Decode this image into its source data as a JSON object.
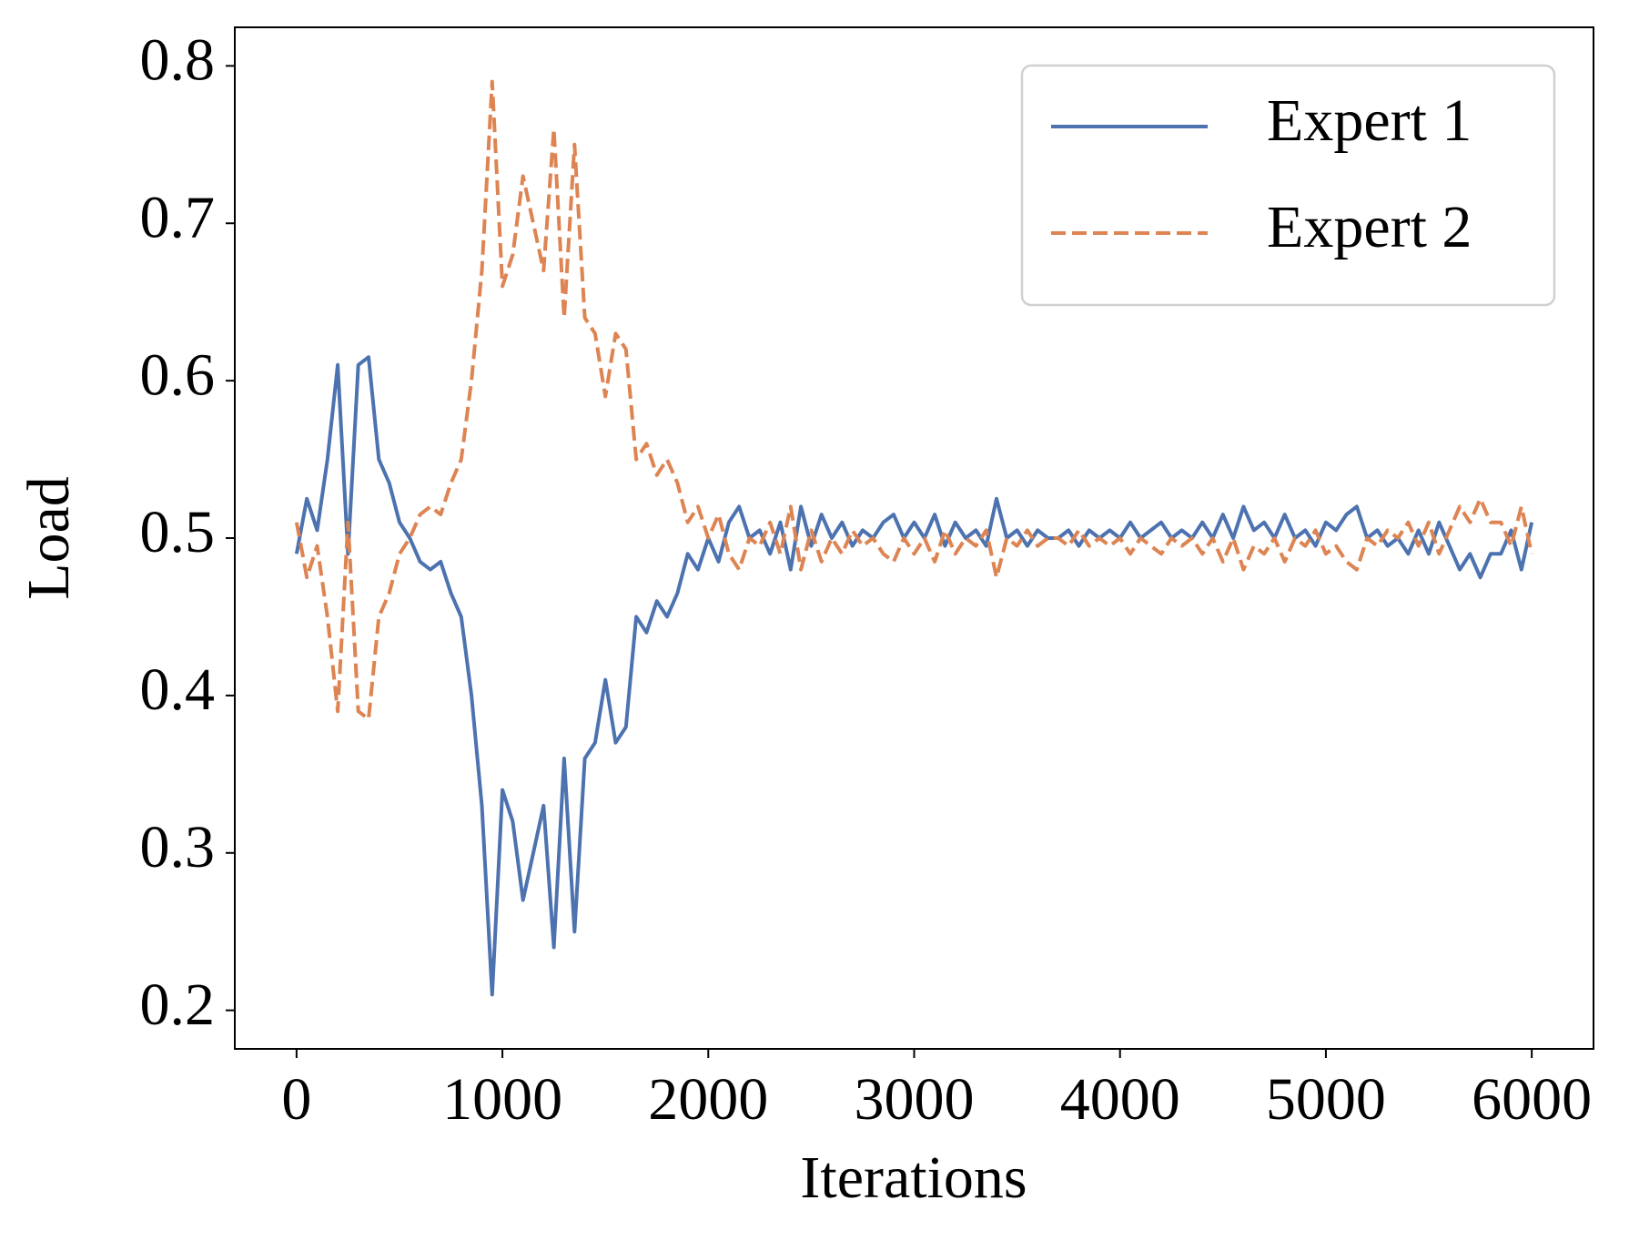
{
  "chart_data": {
    "type": "line",
    "xlabel": "Iterations",
    "ylabel": "Load",
    "x": [
      0,
      50,
      100,
      150,
      200,
      250,
      300,
      350,
      400,
      450,
      500,
      550,
      600,
      650,
      700,
      750,
      800,
      850,
      900,
      950,
      1000,
      1050,
      1100,
      1150,
      1200,
      1250,
      1300,
      1350,
      1400,
      1450,
      1500,
      1550,
      1600,
      1650,
      1700,
      1750,
      1800,
      1850,
      1900,
      1950,
      2000,
      2050,
      2100,
      2150,
      2200,
      2250,
      2300,
      2350,
      2400,
      2450,
      2500,
      2550,
      2600,
      2650,
      2700,
      2750,
      2800,
      2850,
      2900,
      2950,
      3000,
      3050,
      3100,
      3150,
      3200,
      3250,
      3300,
      3350,
      3400,
      3450,
      3500,
      3550,
      3600,
      3650,
      3700,
      3750,
      3800,
      3850,
      3900,
      3950,
      4000,
      4050,
      4100,
      4150,
      4200,
      4250,
      4300,
      4350,
      4400,
      4450,
      4500,
      4550,
      4600,
      4650,
      4700,
      4750,
      4800,
      4850,
      4900,
      4950,
      5000,
      5050,
      5100,
      5150,
      5200,
      5250,
      5300,
      5350,
      5400,
      5450,
      5500,
      5550,
      5600,
      5650,
      5700,
      5750,
      5800,
      5850,
      5900,
      5950,
      6000
    ],
    "series": [
      {
        "name": "Expert 1",
        "color": "#4c72b0",
        "dash": "solid",
        "values": [
          0.49,
          0.525,
          0.505,
          0.55,
          0.61,
          0.49,
          0.61,
          0.615,
          0.55,
          0.535,
          0.51,
          0.5,
          0.485,
          0.48,
          0.485,
          0.465,
          0.45,
          0.4,
          0.33,
          0.21,
          0.34,
          0.32,
          0.27,
          0.3,
          0.33,
          0.24,
          0.36,
          0.25,
          0.36,
          0.37,
          0.41,
          0.37,
          0.38,
          0.45,
          0.44,
          0.46,
          0.45,
          0.465,
          0.49,
          0.48,
          0.5,
          0.485,
          0.51,
          0.52,
          0.5,
          0.505,
          0.49,
          0.51,
          0.48,
          0.52,
          0.495,
          0.515,
          0.5,
          0.51,
          0.495,
          0.505,
          0.5,
          0.51,
          0.515,
          0.5,
          0.51,
          0.5,
          0.515,
          0.495,
          0.51,
          0.5,
          0.505,
          0.495,
          0.525,
          0.5,
          0.505,
          0.495,
          0.505,
          0.5,
          0.5,
          0.505,
          0.495,
          0.505,
          0.5,
          0.505,
          0.5,
          0.51,
          0.5,
          0.505,
          0.51,
          0.5,
          0.505,
          0.5,
          0.51,
          0.5,
          0.515,
          0.5,
          0.52,
          0.505,
          0.51,
          0.5,
          0.515,
          0.5,
          0.505,
          0.495,
          0.51,
          0.505,
          0.515,
          0.52,
          0.5,
          0.505,
          0.495,
          0.5,
          0.49,
          0.505,
          0.49,
          0.51,
          0.495,
          0.48,
          0.49,
          0.475,
          0.49,
          0.49,
          0.505,
          0.48,
          0.51
        ]
      },
      {
        "name": "Expert 2",
        "color": "#dd8452",
        "dash": "dashed",
        "values": [
          0.51,
          0.475,
          0.495,
          0.45,
          0.39,
          0.51,
          0.39,
          0.385,
          0.45,
          0.465,
          0.49,
          0.5,
          0.515,
          0.52,
          0.515,
          0.535,
          0.55,
          0.6,
          0.67,
          0.79,
          0.66,
          0.68,
          0.73,
          0.7,
          0.67,
          0.76,
          0.64,
          0.75,
          0.64,
          0.63,
          0.59,
          0.63,
          0.62,
          0.55,
          0.56,
          0.54,
          0.55,
          0.535,
          0.51,
          0.52,
          0.5,
          0.515,
          0.49,
          0.48,
          0.5,
          0.495,
          0.51,
          0.49,
          0.52,
          0.48,
          0.505,
          0.485,
          0.5,
          0.49,
          0.505,
          0.495,
          0.5,
          0.49,
          0.485,
          0.5,
          0.49,
          0.5,
          0.485,
          0.505,
          0.49,
          0.5,
          0.495,
          0.505,
          0.475,
          0.5,
          0.495,
          0.505,
          0.495,
          0.5,
          0.5,
          0.495,
          0.505,
          0.495,
          0.5,
          0.495,
          0.5,
          0.49,
          0.5,
          0.495,
          0.49,
          0.5,
          0.495,
          0.5,
          0.49,
          0.5,
          0.485,
          0.5,
          0.48,
          0.495,
          0.49,
          0.5,
          0.485,
          0.5,
          0.495,
          0.505,
          0.49,
          0.495,
          0.485,
          0.48,
          0.5,
          0.495,
          0.505,
          0.5,
          0.51,
          0.495,
          0.51,
          0.49,
          0.505,
          0.52,
          0.51,
          0.525,
          0.51,
          0.51,
          0.495,
          0.52,
          0.49
        ]
      }
    ],
    "xlim": [
      -300,
      6300
    ],
    "xticks": [
      0,
      1000,
      2000,
      3000,
      4000,
      5000,
      6000
    ],
    "ylim": [
      0.1755,
      0.8245
    ],
    "yticks": [
      0.2,
      0.3,
      0.4,
      0.5,
      0.6,
      0.7,
      0.8
    ],
    "legend": "upper right",
    "grid": false
  }
}
